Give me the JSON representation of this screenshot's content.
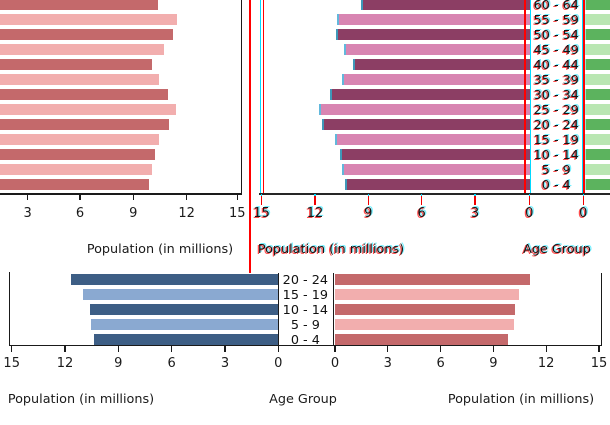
{
  "colors": {
    "salmon_dark": "#c4696b",
    "salmon_light": "#f2aeae",
    "purple_dark": "#8c3e64",
    "purple_light": "#d885b2",
    "blue_dark": "#3d5e85",
    "blue_light": "#8aa9d1",
    "green_dark": "#5cb35e",
    "green_light": "#b9e6b2",
    "red_accent_line": "#ff0000",
    "cyan_accent_line": "#00d9ff",
    "axis": "#1a1a1a",
    "text": "#1a1a1a"
  },
  "chart_data": [
    {
      "id": "top-left-pyramid-half",
      "type": "bar",
      "orientation": "horizontal",
      "direction": "right",
      "categories": [
        "60 - 64",
        "55 - 59",
        "50 - 54",
        "45 - 49",
        "40 - 44",
        "35 - 39",
        "30 - 34",
        "25 - 29",
        "20 - 24",
        "15 - 19",
        "10 - 14",
        "5 - 9",
        "0 - 4"
      ],
      "values": [
        10.45,
        11.55,
        11.35,
        10.8,
        10.1,
        10.55,
        11.05,
        11.5,
        11.1,
        10.5,
        10.3,
        10.15,
        9.95
      ],
      "xlabel": "Population (in millions)",
      "xticks": [
        "3",
        "6",
        "9",
        "12",
        "15"
      ],
      "xlim": [
        0,
        15
      ],
      "bar_colors": [
        "#c4696b",
        "#f2aeae"
      ],
      "clipped_left": true
    },
    {
      "id": "top-right-pyramid-half",
      "type": "bar",
      "orientation": "horizontal",
      "direction": "left",
      "axis_reversed": true,
      "categories": [
        "60 - 64",
        "55 - 59",
        "50 - 54",
        "45 - 49",
        "40 - 44",
        "35 - 39",
        "30 - 34",
        "25 - 29",
        "20 - 24",
        "15 - 19",
        "10 - 14",
        "5 - 9",
        "0 - 4"
      ],
      "values": [
        9.45,
        10.8,
        10.85,
        10.4,
        9.9,
        10.5,
        11.2,
        11.8,
        11.6,
        10.9,
        10.6,
        10.5,
        10.35
      ],
      "xlabel": "Population (in millions)",
      "xticks": [
        "15",
        "12",
        "9",
        "6",
        "3",
        "0"
      ],
      "xlim": [
        15,
        0
      ],
      "bar_colors": [
        "#8c3e64",
        "#d885b2"
      ],
      "style_note": "red-cyan chromatic fringing on ticks, labels and borders"
    },
    {
      "id": "top-age-column",
      "type": "table",
      "label": "Age Group",
      "rows": [
        "60 - 64",
        "55 - 59",
        "50 - 54",
        "45 - 49",
        "40 - 44",
        "35 - 39",
        "30 - 34",
        "25 - 29",
        "20 - 24",
        "15 - 19",
        "10 - 14",
        "5 - 9",
        "0 - 4"
      ]
    },
    {
      "id": "top-far-right-green-pyramid-half",
      "type": "bar",
      "orientation": "horizontal",
      "direction": "right",
      "categories": [
        "60 - 64",
        "55 - 59",
        "50 - 54",
        "45 - 49",
        "40 - 44",
        "35 - 39",
        "30 - 34",
        "25 - 29",
        "20 - 24",
        "15 - 19",
        "10 - 14",
        "5 - 9",
        "0 - 4"
      ],
      "values": null,
      "xticks": [
        "0"
      ],
      "bar_colors": [
        "#5cb35e",
        "#b9e6b2"
      ],
      "clipped_right": true
    },
    {
      "id": "bottom-left-pyramid-half",
      "type": "bar",
      "orientation": "horizontal",
      "direction": "left",
      "axis_reversed": true,
      "categories": [
        "20 - 24",
        "15 - 19",
        "10 - 14",
        "5 - 9",
        "0 - 4"
      ],
      "values": [
        11.65,
        10.95,
        10.55,
        10.5,
        10.35
      ],
      "xlabel": "Population (in millions)",
      "xticks": [
        "15",
        "12",
        "9",
        "6",
        "3",
        "0"
      ],
      "xlim": [
        15,
        0
      ],
      "bar_colors": [
        "#3d5e85",
        "#8aa9d1"
      ],
      "clipped_top": true
    },
    {
      "id": "bottom-age-column",
      "type": "table",
      "label": "Age Group",
      "rows": [
        "20 - 24",
        "15 - 19",
        "10 - 14",
        "5 - 9",
        "0 - 4"
      ]
    },
    {
      "id": "bottom-right-pyramid-half",
      "type": "bar",
      "orientation": "horizontal",
      "direction": "right",
      "categories": [
        "20 - 24",
        "15 - 19",
        "10 - 14",
        "5 - 9",
        "0 - 4"
      ],
      "values": [
        11.1,
        10.45,
        10.2,
        10.15,
        9.85
      ],
      "xlabel": "Population (in millions)",
      "xticks": [
        "0",
        "3",
        "6",
        "9",
        "12",
        "15"
      ],
      "xlim": [
        0,
        15
      ],
      "bar_colors": [
        "#c4696b",
        "#f2aeae"
      ],
      "clipped_top": true
    }
  ]
}
